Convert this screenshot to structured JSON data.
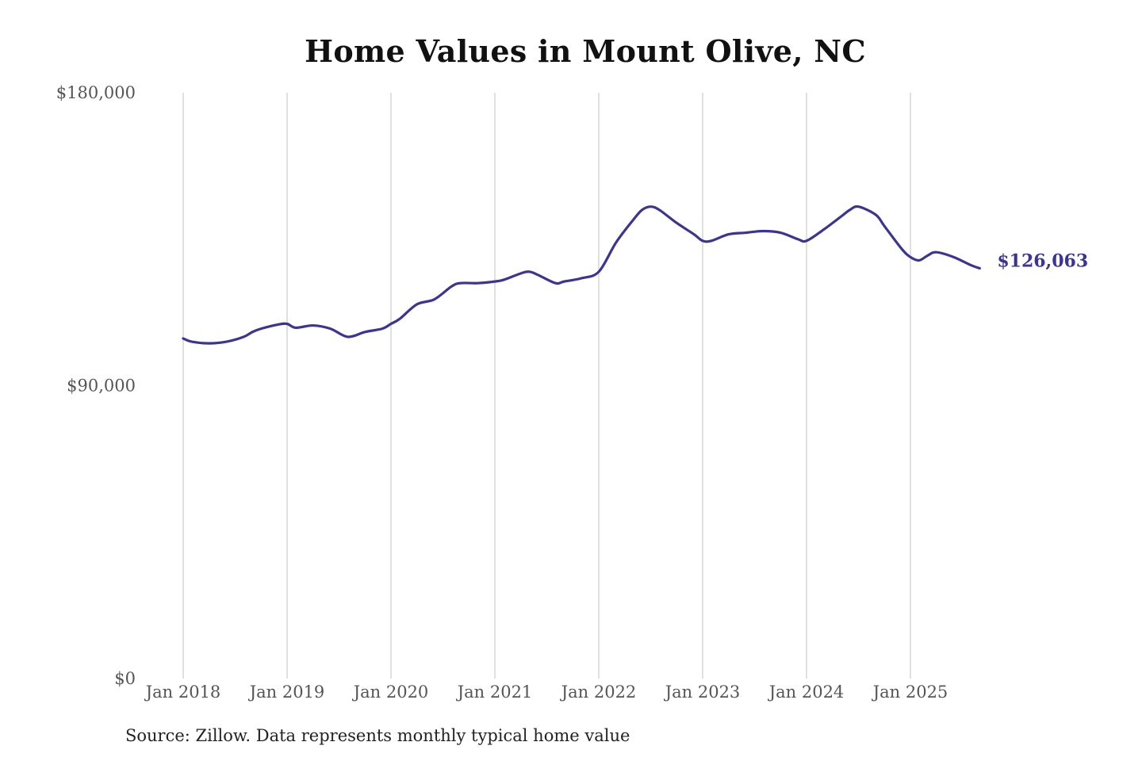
{
  "chart_data": {
    "type": "line",
    "title": "Home Values in Mount Olive, NC",
    "xlabel": "",
    "ylabel": "",
    "ylim": [
      0,
      180000
    ],
    "y_ticks": [
      {
        "value": 0,
        "label": "$0"
      },
      {
        "value": 90000,
        "label": "$90,000"
      },
      {
        "value": 180000,
        "label": "$180,000"
      }
    ],
    "x_ticks": [
      "Jan 2018",
      "Jan 2019",
      "Jan 2020",
      "Jan 2021",
      "Jan 2022",
      "Jan 2023",
      "Jan 2024",
      "Jan 2025"
    ],
    "x_tick_years": [
      2018,
      2019,
      2020,
      2021,
      2022,
      2023,
      2024,
      2025
    ],
    "grid": {
      "vertical": true,
      "horizontal": false
    },
    "legend": "none",
    "series": [
      {
        "color": "#3a3494",
        "x": [
          "2018-01",
          "2018-02",
          "2018-04",
          "2018-06",
          "2018-08",
          "2018-09",
          "2018-10",
          "2018-12",
          "2019-01",
          "2019-02",
          "2019-04",
          "2019-06",
          "2019-08",
          "2019-10",
          "2019-12",
          "2020-01",
          "2020-02",
          "2020-04",
          "2020-06",
          "2020-08",
          "2020-09",
          "2020-11",
          "2021-01",
          "2021-02",
          "2021-04",
          "2021-05",
          "2021-06",
          "2021-08",
          "2021-09",
          "2021-11",
          "2022-01",
          "2022-03",
          "2022-05",
          "2022-06",
          "2022-07",
          "2022-08",
          "2022-10",
          "2022-12",
          "2023-01",
          "2023-02",
          "2023-04",
          "2023-06",
          "2023-08",
          "2023-10",
          "2023-12",
          "2024-01",
          "2024-03",
          "2024-05",
          "2024-06",
          "2024-07",
          "2024-09",
          "2024-10",
          "2024-12",
          "2025-01",
          "2025-02",
          "2025-03",
          "2025-04",
          "2025-06",
          "2025-08",
          "2025-09"
        ],
        "y": [
          104500,
          103500,
          103000,
          103500,
          105000,
          106500,
          107500,
          108800,
          109000,
          107800,
          108500,
          107500,
          105000,
          106500,
          107500,
          109000,
          110500,
          115000,
          116500,
          120500,
          121500,
          121500,
          122000,
          122500,
          124500,
          125000,
          124000,
          121500,
          122000,
          123000,
          125000,
          134000,
          141000,
          144000,
          145000,
          144000,
          140000,
          136500,
          134500,
          134500,
          136500,
          137000,
          137500,
          137000,
          135000,
          134500,
          138000,
          142000,
          144000,
          145000,
          142500,
          139000,
          132000,
          129500,
          128500,
          130000,
          131000,
          129500,
          127000,
          126063
        ]
      }
    ],
    "end_label": "$126,063",
    "source": "Source: Zillow. Data represents monthly typical home value"
  }
}
